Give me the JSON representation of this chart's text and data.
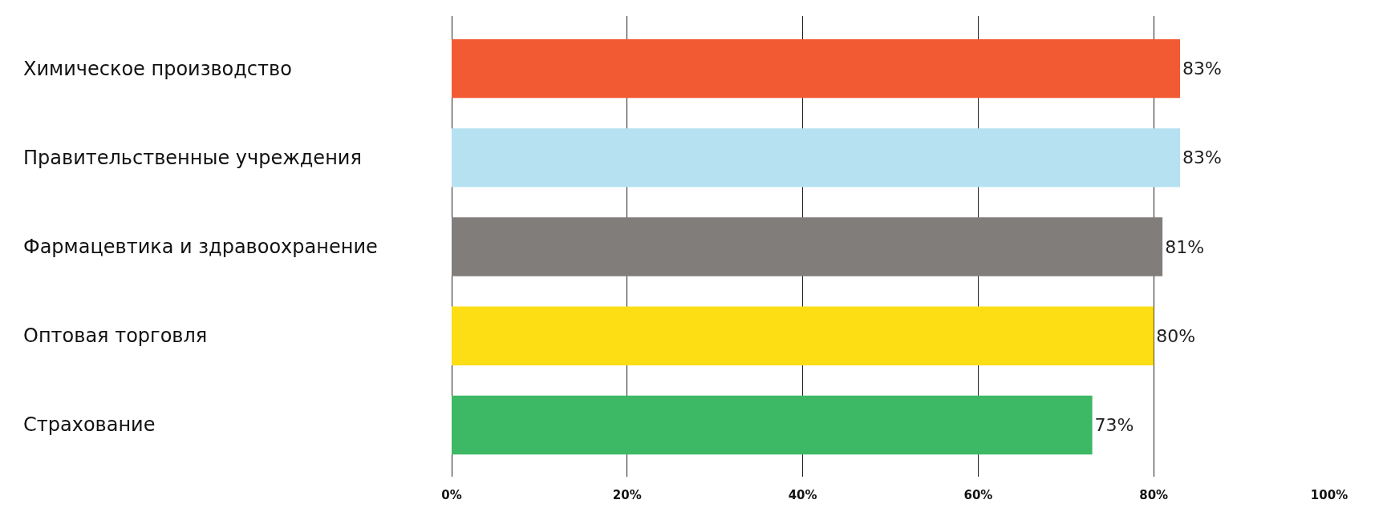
{
  "chart_data": {
    "type": "bar",
    "orientation": "horizontal",
    "categories": [
      "Химическое производство",
      "Правительственные учреждения",
      "Фармацевтика и здравоохранение",
      "Оптовая торговля",
      "Страхование"
    ],
    "values": [
      83,
      83,
      81,
      80,
      73
    ],
    "value_labels": [
      "83%",
      "83%",
      "81%",
      "80%",
      "73%"
    ],
    "colors": [
      "#f15a33",
      "#b5e1f0",
      "#817d7b",
      "#fddd14",
      "#3db864"
    ],
    "xlim": [
      0,
      100
    ],
    "xticks": [
      {
        "value": 0,
        "label": "0%"
      },
      {
        "value": 20,
        "label": "20%"
      },
      {
        "value": 40,
        "label": "40%"
      },
      {
        "value": 60,
        "label": "60%"
      },
      {
        "value": 80,
        "label": "80%"
      },
      {
        "value": 100,
        "label": "100%"
      }
    ],
    "grid": "x"
  }
}
